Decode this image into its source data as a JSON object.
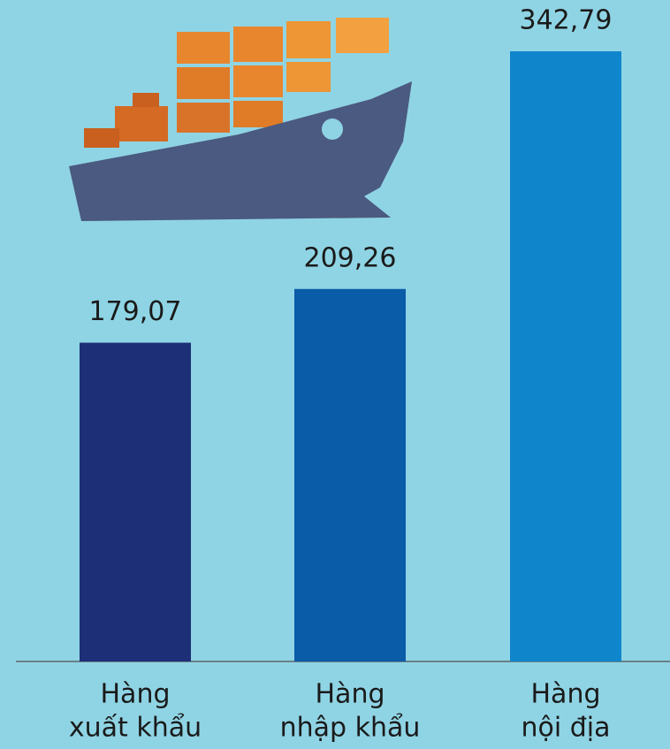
{
  "chart_data": {
    "type": "bar",
    "categories": [
      [
        "Hàng",
        "xuất khẩu"
      ],
      [
        "Hàng",
        "nhập khẩu"
      ],
      [
        "Hàng",
        "nội địa"
      ]
    ],
    "values": [
      179.07,
      209.26,
      342.79
    ],
    "value_labels": [
      "179,07",
      "209,26",
      "342,79"
    ],
    "colors": [
      "#1d2f77",
      "#0a5ba8",
      "#0f86cb"
    ]
  }
}
